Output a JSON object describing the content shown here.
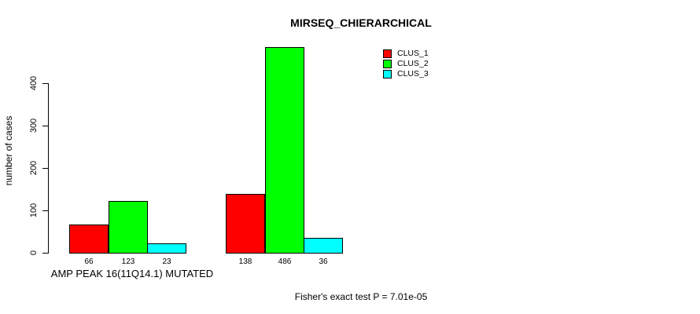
{
  "title": "MIRSEQ_CHIERARCHICAL",
  "axes": {
    "ylabel": "number of cases",
    "xlabel": "AMP PEAK 16(11Q14.1) MUTATED"
  },
  "footer": "Fisher's exact test P = 7.01e-05",
  "legend": {
    "items": [
      {
        "label": "CLUS_1",
        "color": "#ff0000"
      },
      {
        "label": "CLUS_2",
        "color": "#00ff00"
      },
      {
        "label": "CLUS_3",
        "color": "#00ffff"
      }
    ]
  },
  "chart_data": {
    "type": "bar",
    "title": "MIRSEQ_CHIERARCHICAL",
    "xlabel": "AMP PEAK 16(11Q14.1) MUTATED",
    "ylabel": "number of cases",
    "categories": [
      "",
      ""
    ],
    "series": [
      {
        "name": "CLUS_1",
        "color": "#ff0000",
        "values": [
          66,
          138
        ]
      },
      {
        "name": "CLUS_2",
        "color": "#00ff00",
        "values": [
          123,
          486
        ]
      },
      {
        "name": "CLUS_3",
        "color": "#00ffff",
        "values": [
          23,
          36
        ]
      }
    ],
    "bar_value_labels": [
      [
        66,
        123,
        23
      ],
      [
        138,
        486,
        36
      ]
    ],
    "yticks": [
      0,
      100,
      200,
      300,
      400
    ],
    "ylim": [
      0,
      486
    ],
    "grid": false,
    "legend_position": "top-right",
    "legend_entries": [
      "CLUS_1",
      "CLUS_2",
      "CLUS_3"
    ],
    "annotation": "Fisher's exact test P = 7.01e-05"
  }
}
